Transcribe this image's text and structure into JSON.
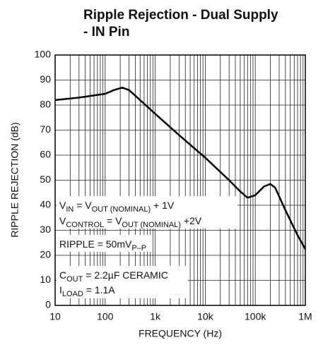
{
  "chart_data": {
    "type": "line",
    "title": [
      "Ripple Rejection - Dual Supply",
      "- IN Pin"
    ],
    "x_label": "FREQUENCY (Hz)",
    "y_label": "RIPPLE REJECTION (dB)",
    "xscale": "log",
    "xlim": [
      10,
      1000000
    ],
    "ylim": [
      0,
      100
    ],
    "xticks": [
      10,
      100,
      {
        "value": 1000,
        "label": "1k"
      },
      {
        "value": 10000,
        "label": "10k"
      },
      {
        "value": 100000,
        "label": "100k"
      },
      {
        "value": 1000000,
        "label": "1M"
      }
    ],
    "xminorticks": [
      20,
      30,
      40,
      50,
      60,
      70,
      80,
      90,
      200,
      300,
      400,
      500,
      600,
      700,
      800,
      900,
      2000,
      3000,
      4000,
      5000,
      6000,
      7000,
      8000,
      9000,
      20000,
      30000,
      40000,
      50000,
      60000,
      70000,
      80000,
      90000,
      200000,
      300000,
      400000,
      500000,
      600000,
      700000,
      800000,
      900000
    ],
    "yticks": [
      0,
      10,
      20,
      30,
      40,
      50,
      60,
      70,
      80,
      90,
      100
    ],
    "grid": true,
    "series": [
      {
        "color": "#000000",
        "x": [
          10,
          30,
          100,
          150,
          220,
          300,
          500,
          1000,
          3000,
          10000,
          30000,
          50000,
          70000,
          100000,
          150000,
          200000,
          250000,
          400000,
          700000,
          1000000
        ],
        "values": [
          82,
          83,
          84.5,
          86,
          87,
          86,
          82,
          76.5,
          68,
          59,
          50,
          45.5,
          43,
          44,
          47.5,
          48.5,
          47,
          38,
          28,
          22.5
        ]
      }
    ],
    "annotations": [
      [
        "V",
        "IN",
        " = V",
        "OUT (NOMINAL)",
        " + 1V"
      ],
      [
        "V",
        "CONTROL",
        " = V",
        "OUT (NOMINAL)",
        " +2V"
      ],
      [
        "RIPPLE = 50mV",
        "P–P"
      ],
      [
        "C",
        "OUT",
        " = 2.2µF CERAMIC"
      ],
      [
        "I",
        "LOAD",
        " = 1.1A"
      ]
    ]
  }
}
